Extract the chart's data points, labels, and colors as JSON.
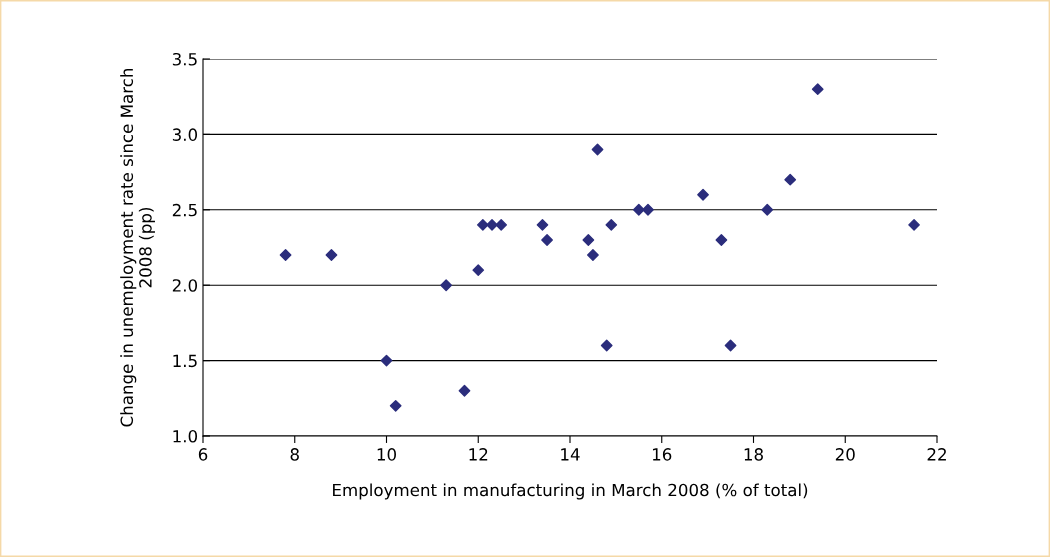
{
  "chart_data": {
    "type": "scatter",
    "xlabel": "Employment in manufacturing in March 2008 (% of total)",
    "ylabel": "Change in unemployment rate since March\n2008 (pp)",
    "x": [
      7.8,
      8.8,
      10.0,
      10.2,
      11.3,
      11.7,
      12.0,
      12.1,
      12.3,
      12.5,
      13.4,
      13.5,
      14.4,
      14.5,
      14.6,
      14.8,
      14.9,
      15.5,
      15.7,
      16.9,
      17.3,
      17.5,
      18.3,
      18.8,
      19.4,
      21.5
    ],
    "series": [
      {
        "color": "#2b2d7c",
        "values": [
          2.2,
          2.2,
          1.5,
          1.2,
          2.0,
          1.3,
          2.1,
          2.4,
          2.4,
          2.4,
          2.4,
          2.3,
          2.3,
          2.2,
          2.9,
          1.6,
          2.4,
          2.5,
          2.5,
          2.6,
          2.3,
          1.6,
          2.5,
          2.7,
          3.3,
          2.4
        ]
      }
    ],
    "xlim": [
      6,
      22
    ],
    "xticks": [
      6,
      8,
      10,
      12,
      14,
      16,
      18,
      20,
      22
    ],
    "ylim": [
      1.0,
      3.5
    ],
    "yticks": [
      {
        "value": 1.0,
        "label": "1.0"
      },
      {
        "value": 1.5,
        "label": "1.5"
      },
      {
        "value": 2.0,
        "label": "2.0"
      },
      {
        "value": 2.5,
        "label": "2.5"
      },
      {
        "value": 3.0,
        "label": "3.0"
      },
      {
        "value": 3.5,
        "label": "3.5"
      }
    ],
    "grid": "y",
    "marker": "diamond",
    "legend": false
  }
}
